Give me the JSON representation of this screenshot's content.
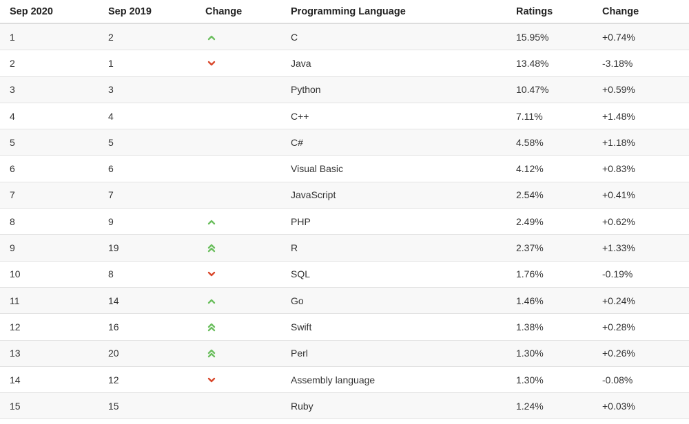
{
  "table": {
    "header": [
      "Sep 2020",
      "Sep 2019",
      "Change",
      "Programming Language",
      "Ratings",
      "Change"
    ],
    "rows": [
      [
        "1",
        "2",
        "C",
        "15.95%",
        "+0.74%"
      ],
      [
        "2",
        "1",
        "Java",
        "13.48%",
        "-3.18%"
      ],
      [
        "3",
        "3",
        "Python",
        "10.47%",
        "+0.59%"
      ],
      [
        "4",
        "4",
        "C++",
        "7.11%",
        "+1.48%"
      ],
      [
        "5",
        "5",
        "C#",
        "4.58%",
        "+1.18%"
      ],
      [
        "6",
        "6",
        "Visual Basic",
        "4.12%",
        "+0.83%"
      ],
      [
        "7",
        "7",
        "JavaScript",
        "2.54%",
        "+0.41%"
      ],
      [
        "8",
        "9",
        "PHP",
        "2.49%",
        "+0.62%"
      ],
      [
        "9",
        "19",
        "R",
        "2.37%",
        "+1.33%"
      ],
      [
        "10",
        "8",
        "SQL",
        "1.76%",
        "-0.19%"
      ],
      [
        "11",
        "14",
        "Go",
        "1.46%",
        "+0.24%"
      ],
      [
        "12",
        "16",
        "Swift",
        "1.38%",
        "+0.28%"
      ],
      [
        "13",
        "20",
        "Perl",
        "1.30%",
        "+0.26%"
      ],
      [
        "14",
        "12",
        "Assembly language",
        "1.30%",
        "-0.08%"
      ],
      [
        "15",
        "15",
        "Ruby",
        "1.24%",
        "+0.03%"
      ]
    ]
  }
}
